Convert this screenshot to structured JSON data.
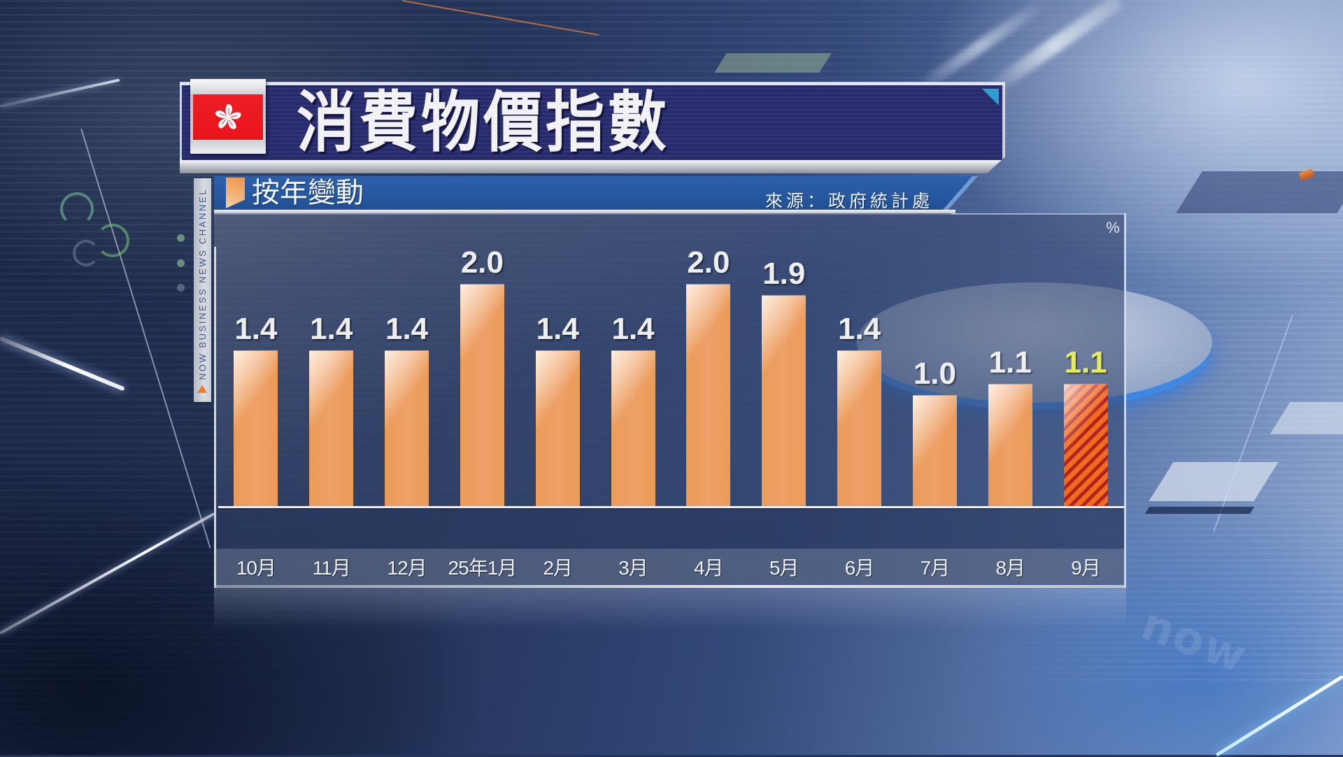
{
  "header": {
    "title": "消費物價指數",
    "flag_icon": "hong-kong-flag-icon"
  },
  "subheader": {
    "label": "按年變動",
    "source": "來源：政府統計處"
  },
  "channel_strip": {
    "text": "NOW BUSINESS NEWS CHANNEL",
    "marker_icon": "orange-triangle-icon"
  },
  "background_logo": "now",
  "colors": {
    "title_bar": "#272b69",
    "subtitle_bar": "#2658a0",
    "bar": "#ec9b58",
    "highlight_stripe_a": "#f26b1f",
    "highlight_stripe_b": "#b1241d",
    "highlight_label": "#e6eb5c",
    "value_label": "#eeeeee",
    "accent_teal": "#2a9fd0",
    "flag_red": "#e8141b"
  },
  "chart_data": {
    "type": "bar",
    "title": "消費物價指數",
    "subtitle": "按年變動",
    "source": "來源：政府統計處",
    "unit": "%",
    "xlabel": "",
    "ylabel": "%",
    "categories": [
      "10月",
      "11月",
      "12月",
      "25年1月",
      "2月",
      "3月",
      "4月",
      "5月",
      "6月",
      "7月",
      "8月",
      "9月"
    ],
    "values": [
      1.4,
      1.4,
      1.4,
      2.0,
      1.4,
      1.4,
      2.0,
      1.9,
      1.4,
      1.0,
      1.1,
      1.1
    ],
    "value_labels": [
      "1.4",
      "1.4",
      "1.4",
      "2.0",
      "1.4",
      "1.4",
      "2.0",
      "1.9",
      "1.4",
      "1.0",
      "1.1",
      "1.1"
    ],
    "highlight_index": 11,
    "ylim": [
      0,
      2.5
    ],
    "grid": false,
    "legend": null
  }
}
